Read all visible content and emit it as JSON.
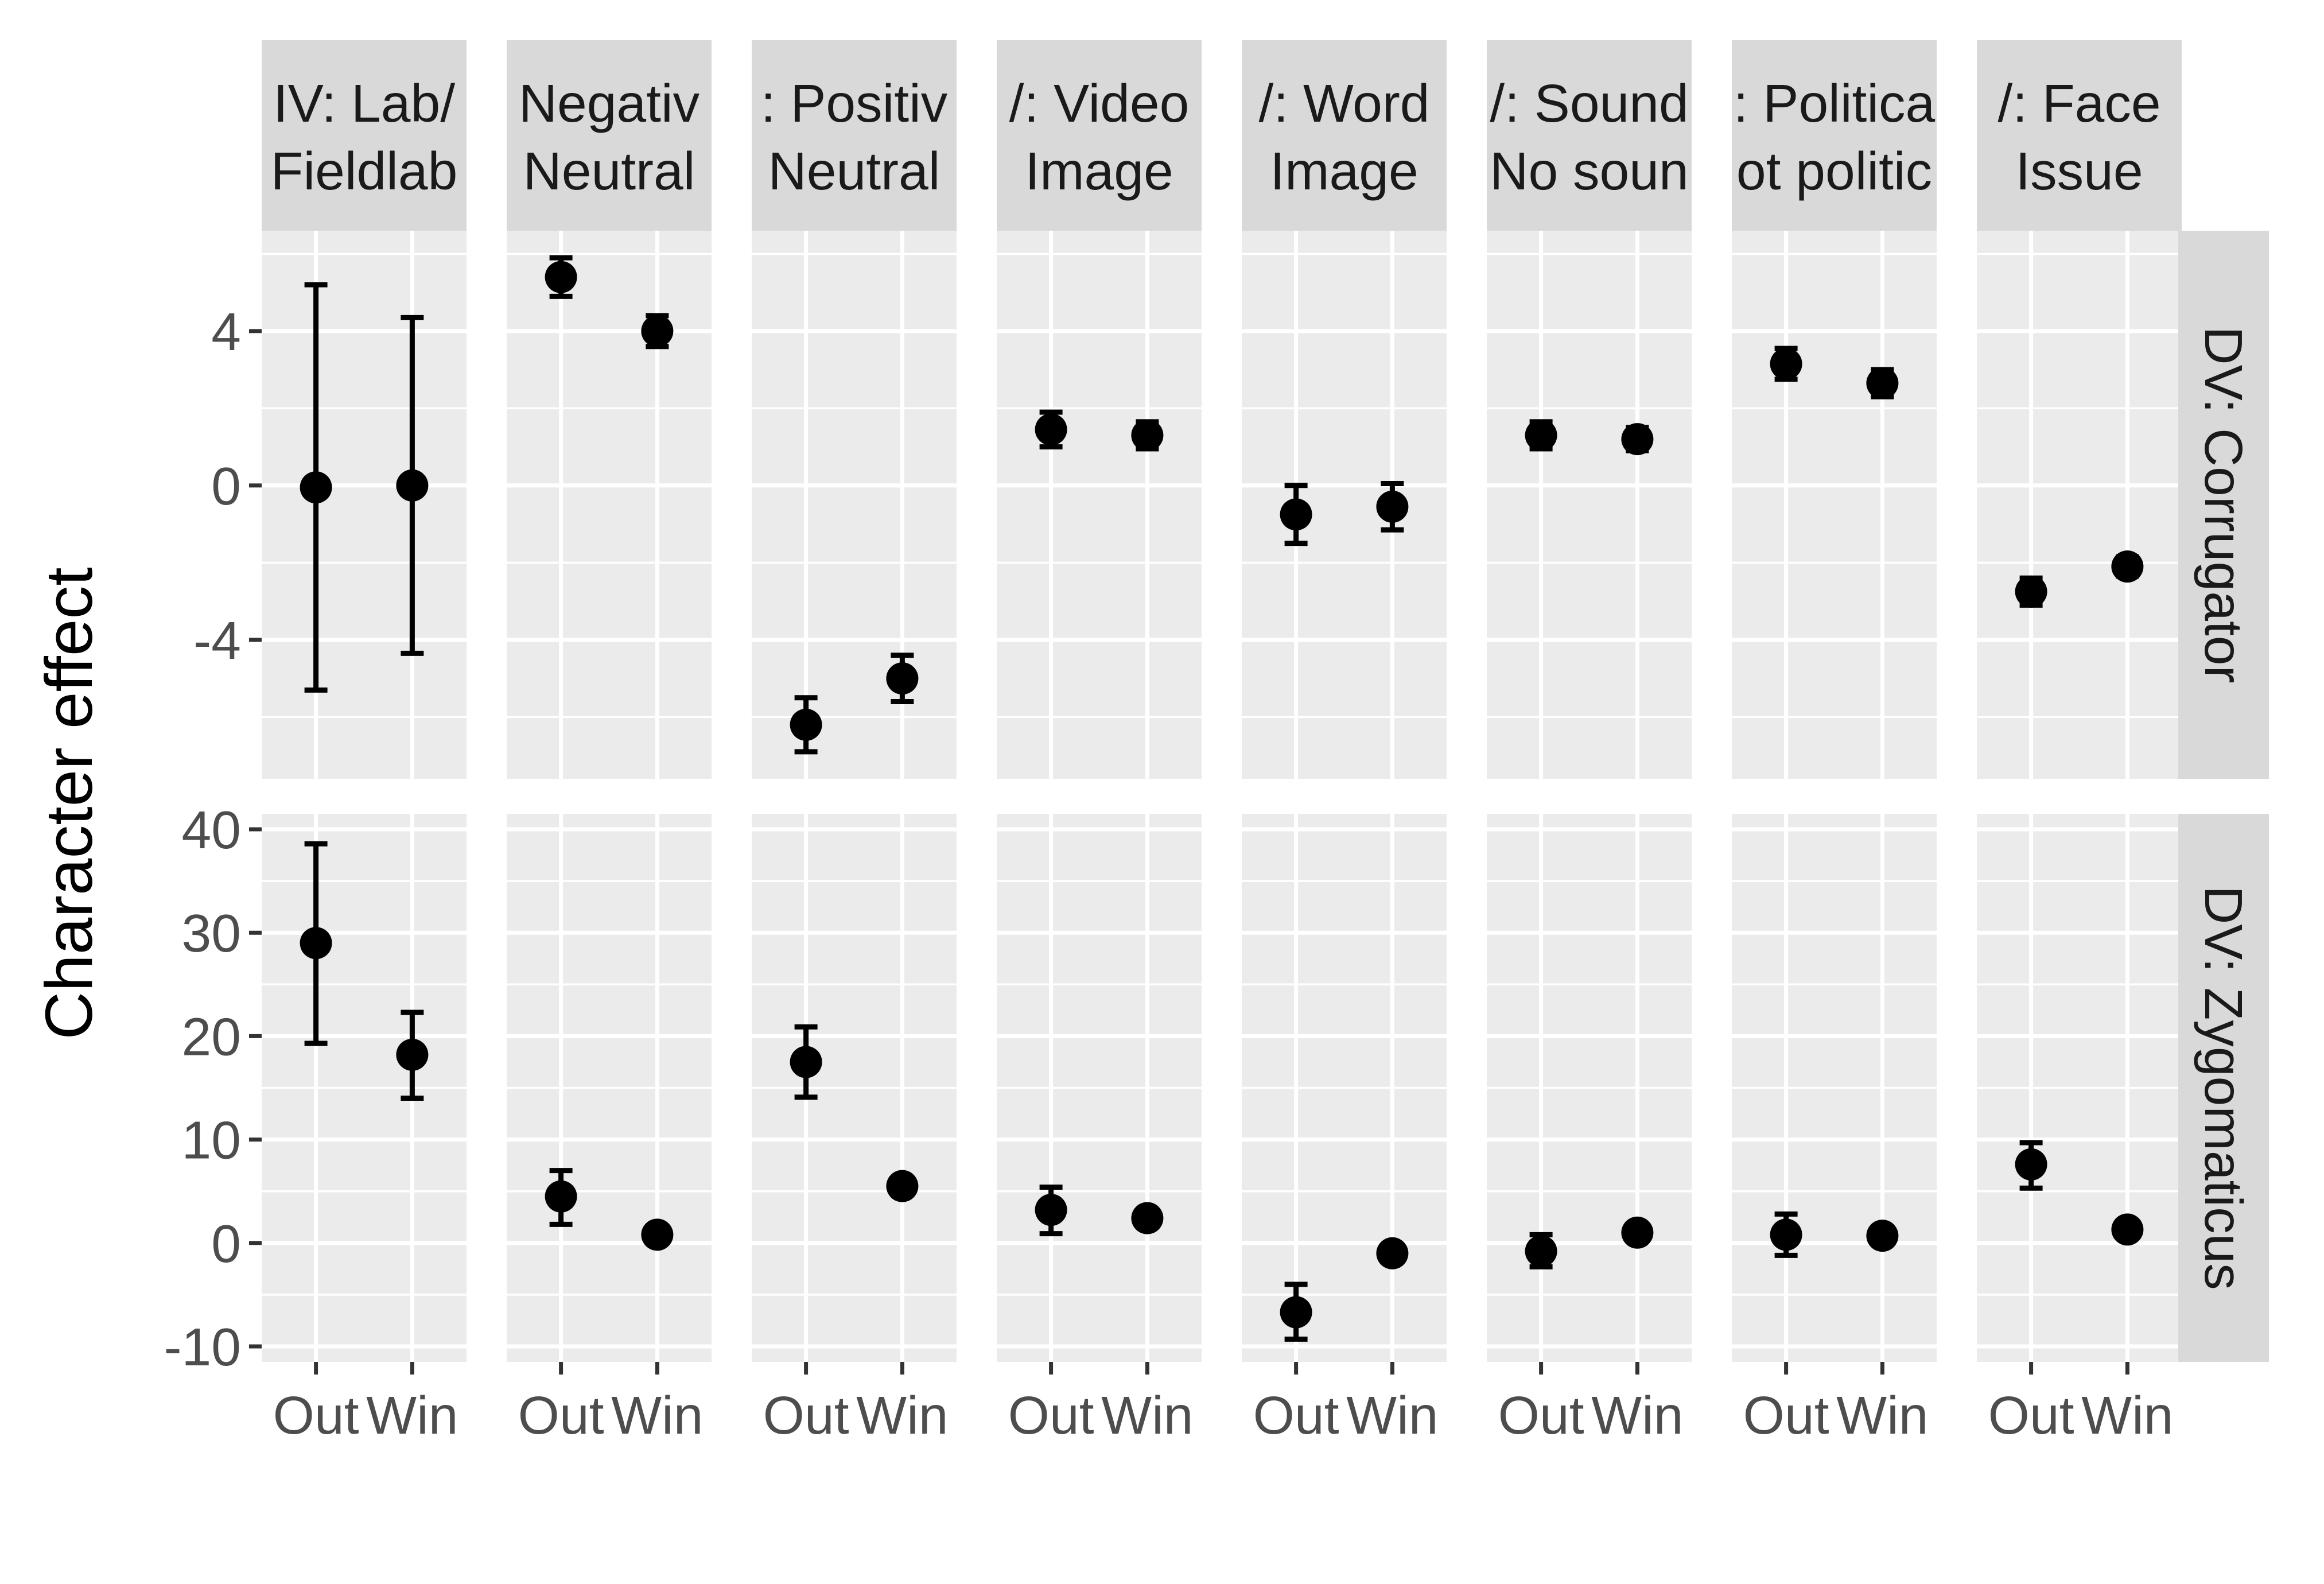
{
  "chart_data": {
    "type": "scatter",
    "ylabel": "Character effect",
    "xlabel": "",
    "x_categories": [
      "Out",
      "Win"
    ],
    "grid": true,
    "legend": "none",
    "columns": [
      {
        "line1": "IV: Lab/",
        "line2": "Fieldlab"
      },
      {
        "line1": "Negativ",
        "line2": "Neutral"
      },
      {
        "line1": ": Positiv",
        "line2": "Neutral"
      },
      {
        "line1": "/: Video",
        "line2": "Image"
      },
      {
        "line1": "/: Word",
        "line2": "Image"
      },
      {
        "line1": "/: Sound",
        "line2": "No soun"
      },
      {
        "line1": ": Politica",
        "line2": "ot politic"
      },
      {
        "line1": "/: Face",
        "line2": "Issue"
      }
    ],
    "rows": [
      {
        "label": "DV: Corrugator",
        "ylim": [
          -7.6,
          6.6
        ],
        "ticks": [
          {
            "value": 4,
            "label": "4"
          },
          {
            "value": 0,
            "label": "0"
          },
          {
            "value": -4,
            "label": "-4"
          }
        ],
        "minor": [
          6,
          2,
          -2,
          -6
        ],
        "data": [
          [
            {
              "y": -0.05,
              "lo": -5.3,
              "hi": 5.2
            },
            {
              "y": 0.0,
              "lo": -4.35,
              "hi": 4.35
            }
          ],
          [
            {
              "y": 5.4,
              "lo": 4.9,
              "hi": 5.9
            },
            {
              "y": 4.0,
              "lo": 3.6,
              "hi": 4.4
            }
          ],
          [
            {
              "y": -6.2,
              "lo": -6.9,
              "hi": -5.5
            },
            {
              "y": -5.0,
              "lo": -5.6,
              "hi": -4.4
            }
          ],
          [
            {
              "y": 1.45,
              "lo": 1.0,
              "hi": 1.9
            },
            {
              "y": 1.3,
              "lo": 0.95,
              "hi": 1.65
            }
          ],
          [
            {
              "y": -0.75,
              "lo": -1.5,
              "hi": 0.0
            },
            {
              "y": -0.55,
              "lo": -1.15,
              "hi": 0.05
            }
          ],
          [
            {
              "y": 1.3,
              "lo": 0.95,
              "hi": 1.65
            },
            {
              "y": 1.2,
              "lo": 0.9,
              "hi": 1.5
            }
          ],
          [
            {
              "y": 3.15,
              "lo": 2.75,
              "hi": 3.55
            },
            {
              "y": 2.65,
              "lo": 2.3,
              "hi": 3.0
            }
          ],
          [
            {
              "y": -2.75,
              "lo": -3.1,
              "hi": -2.4
            },
            {
              "y": -2.1,
              "lo": -2.35,
              "hi": -1.85
            }
          ]
        ]
      },
      {
        "label": "DV: Zygomaticus",
        "ylim": [
          -11.5,
          41.5
        ],
        "ticks": [
          {
            "value": 40,
            "label": "40"
          },
          {
            "value": 30,
            "label": "30"
          },
          {
            "value": 20,
            "label": "20"
          },
          {
            "value": 10,
            "label": "10"
          },
          {
            "value": 0,
            "label": "0"
          },
          {
            "value": -10,
            "label": "-10"
          }
        ],
        "minor": [
          35,
          25,
          15,
          5,
          -5
        ],
        "data": [
          [
            {
              "y": 29.0,
              "lo": 19.3,
              "hi": 38.6
            },
            {
              "y": 18.2,
              "lo": 14.0,
              "hi": 22.3
            }
          ],
          [
            {
              "y": 4.5,
              "lo": 1.8,
              "hi": 7.0
            },
            {
              "y": 0.8,
              "lo": 0.4,
              "hi": 1.2
            }
          ],
          [
            {
              "y": 17.5,
              "lo": 14.1,
              "hi": 20.9
            },
            {
              "y": 5.5,
              "lo": 5.0,
              "hi": 6.0
            }
          ],
          [
            {
              "y": 3.2,
              "lo": 0.9,
              "hi": 5.4
            },
            {
              "y": 2.4,
              "lo": 1.9,
              "hi": 2.9
            }
          ],
          [
            {
              "y": -6.7,
              "lo": -9.3,
              "hi": -4.0
            },
            {
              "y": -1.0,
              "lo": -1.5,
              "hi": -0.5
            }
          ],
          [
            {
              "y": -0.8,
              "lo": -2.3,
              "hi": 0.8
            },
            {
              "y": 1.0,
              "lo": 0.5,
              "hi": 1.5
            }
          ],
          [
            {
              "y": 0.8,
              "lo": -1.2,
              "hi": 2.8
            },
            {
              "y": 0.7,
              "lo": 0.3,
              "hi": 1.1
            }
          ],
          [
            {
              "y": 7.6,
              "lo": 5.3,
              "hi": 9.7
            },
            {
              "y": 1.3,
              "lo": 0.9,
              "hi": 1.7
            }
          ]
        ]
      }
    ]
  }
}
